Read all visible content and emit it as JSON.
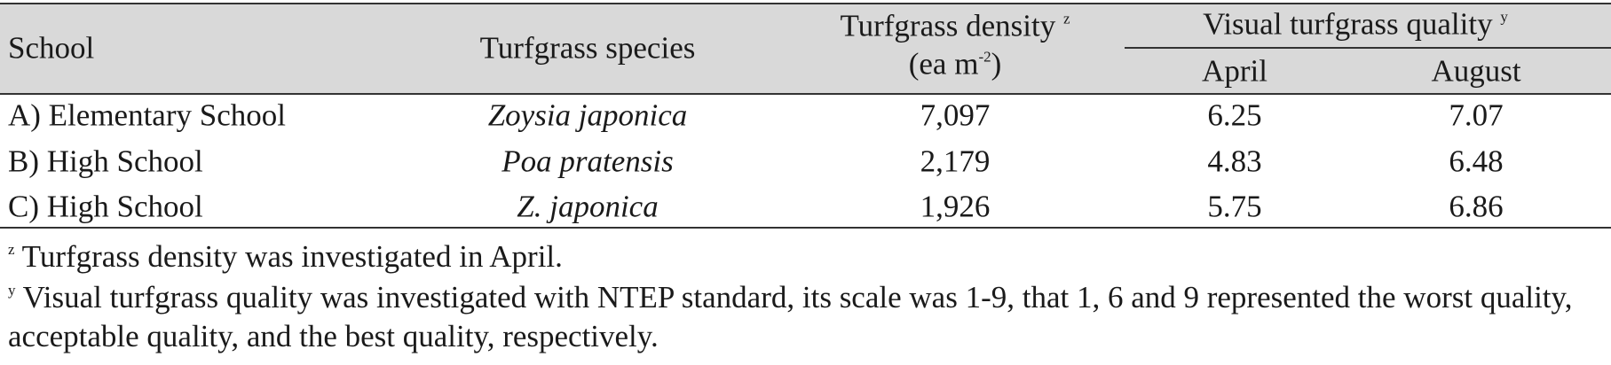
{
  "table": {
    "header": {
      "school": "School",
      "species": "Turfgrass species",
      "density": "Turfgrass density",
      "density_mark": "z",
      "density_unit_pre": "(ea m",
      "density_unit_exp": "-2",
      "density_unit_post": ")",
      "quality": "Visual turfgrass quality",
      "quality_mark": "y",
      "april": "April",
      "august": "August"
    },
    "rows": [
      [
        "A) Elementary School",
        "Zoysia japonica",
        "7,097",
        "6.25",
        "7.07"
      ],
      [
        "B) High School",
        "Poa pratensis",
        "2,179",
        "4.83",
        "6.48"
      ],
      [
        "C) High School",
        "Z. japonica",
        "1,926",
        "5.75",
        "6.86"
      ]
    ]
  },
  "footnotes": [
    {
      "mark": "z",
      "text": "Turfgrass density was investigated in April."
    },
    {
      "mark": "y",
      "text": "Visual turfgrass quality was investigated with NTEP standard, its scale was 1-9, that 1, 6 and 9 represented the worst quality, acceptable quality, and the best quality, respectively."
    }
  ]
}
